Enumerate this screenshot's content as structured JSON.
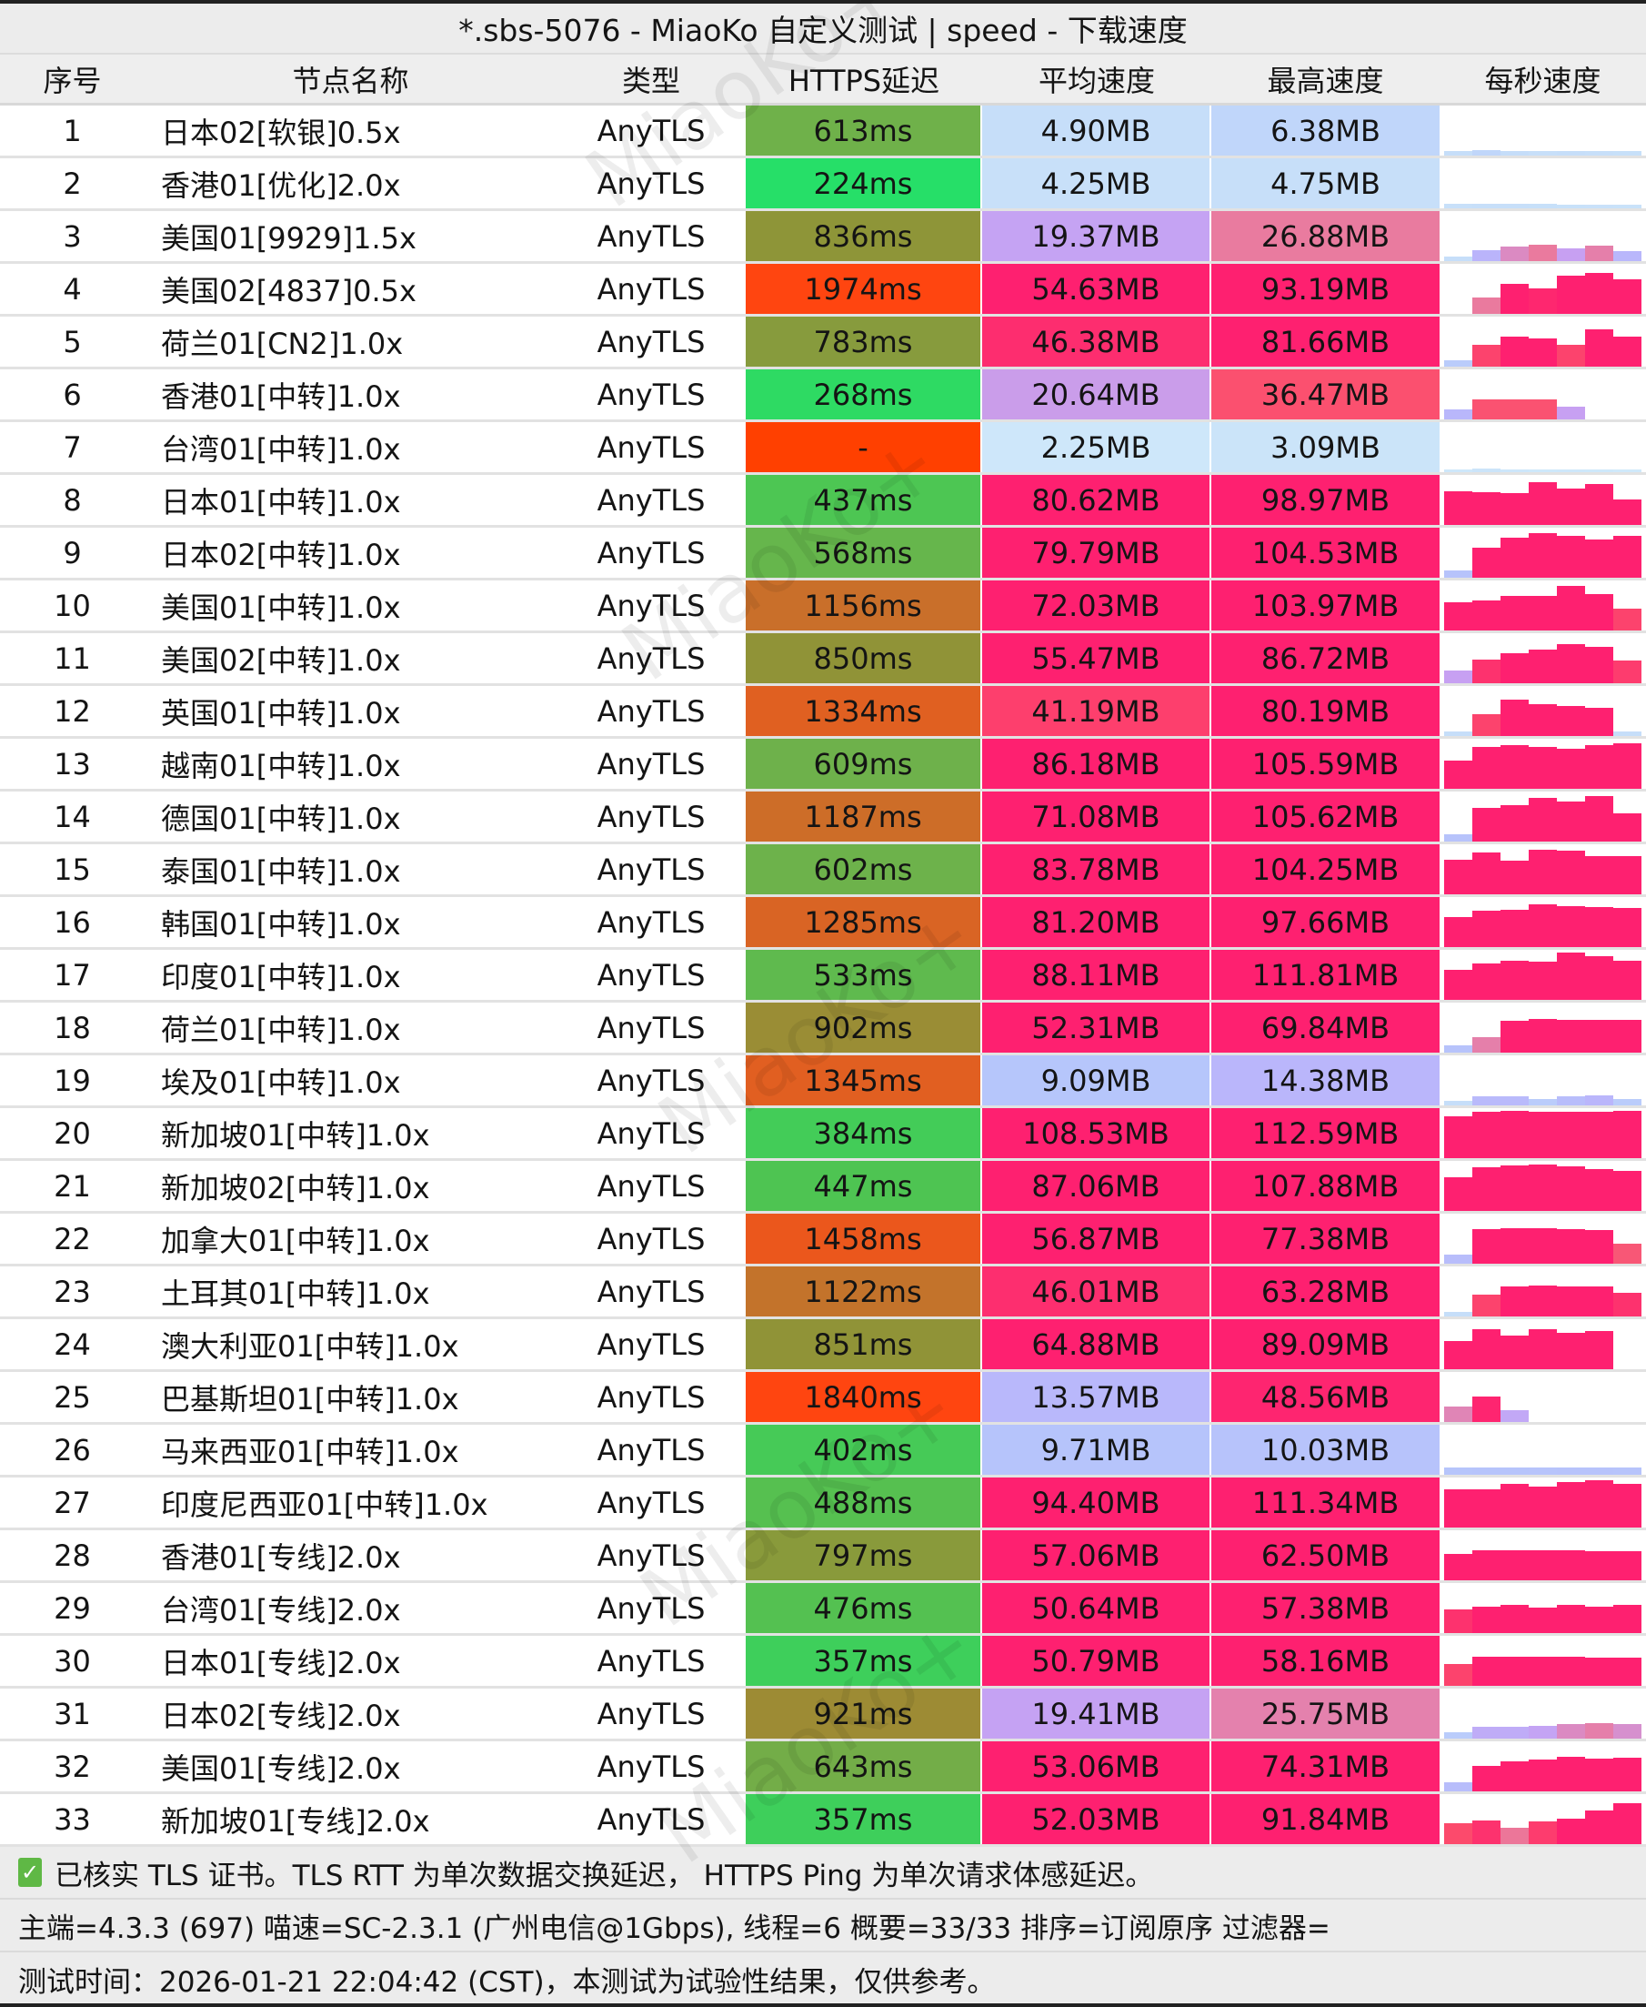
{
  "window": {
    "title": "*.sbs-5076 - MiaoKo 自定义测试 | speed - 下载速度"
  },
  "watermark": "MiaoKo+",
  "columns": [
    "序号",
    "节点名称",
    "类型",
    "HTTPS延迟",
    "平均速度",
    "最高速度",
    "每秒速度"
  ],
  "latency_color_stops": [
    [
      200,
      "#22e26a"
    ],
    [
      450,
      "#4fc452"
    ],
    [
      620,
      "#70b04a"
    ],
    [
      850,
      "#909337"
    ],
    [
      1150,
      "#c8702a"
    ],
    [
      1400,
      "#e85a1e"
    ],
    [
      1800,
      "#ff4510"
    ]
  ],
  "latency_fail_color": "#ff4000",
  "speed_color_stops": [
    [
      0,
      "#d4eefa"
    ],
    [
      5,
      "#c6def9"
    ],
    [
      9,
      "#b6c6fb"
    ],
    [
      15,
      "#bab4fb"
    ],
    [
      20,
      "#c7a0f2"
    ],
    [
      27,
      "#ea7a9e"
    ],
    [
      37,
      "#fc4e6c"
    ],
    [
      50,
      "#fe2070"
    ]
  ],
  "rows": [
    {
      "id": "1",
      "name": "日本02[软银]0.5x",
      "type": "AnyTLS",
      "latency": "613ms",
      "avg": "4.90MB",
      "max": "6.38MB",
      "per_sec": [
        4.9,
        6.4,
        5.2,
        4.8,
        4.9,
        4.7,
        4.5
      ]
    },
    {
      "id": "2",
      "name": "香港01[优化]2.0x",
      "type": "AnyTLS",
      "latency": "224ms",
      "avg": "4.25MB",
      "max": "4.75MB",
      "per_sec": [
        4.3,
        4.7,
        4.6,
        4.5,
        4.2,
        4.0,
        3.8
      ]
    },
    {
      "id": "3",
      "name": "美国01[9929]1.5x",
      "type": "AnyTLS",
      "latency": "836ms",
      "avg": "19.37MB",
      "max": "26.88MB",
      "per_sec": [
        5,
        15,
        24,
        27,
        20,
        26,
        14
      ]
    },
    {
      "id": "4",
      "name": "美国02[4837]0.5x",
      "type": "AnyTLS",
      "latency": "1974ms",
      "avg": "54.63MB",
      "max": "93.19MB",
      "per_sec": [
        0,
        27,
        60,
        48,
        85,
        93,
        75
      ]
    },
    {
      "id": "5",
      "name": "荷兰01[CN2]1.0x",
      "type": "AnyTLS",
      "latency": "783ms",
      "avg": "46.38MB",
      "max": "81.66MB",
      "per_sec": [
        8,
        40,
        60,
        55,
        40,
        82,
        62
      ]
    },
    {
      "id": "6",
      "name": "香港01[中转]1.0x",
      "type": "AnyTLS",
      "latency": "268ms",
      "avg": "20.64MB",
      "max": "36.47MB",
      "per_sec": [
        14,
        36,
        36,
        36,
        20,
        0,
        0
      ]
    },
    {
      "id": "7",
      "name": "台湾01[中转]1.0x",
      "type": "AnyTLS",
      "latency": "-",
      "avg": "2.25MB",
      "max": "3.09MB",
      "per_sec": [
        2.2,
        3.1,
        2.5,
        2.0,
        2.3,
        2.0,
        1.5
      ]
    },
    {
      "id": "8",
      "name": "日本01[中转]1.0x",
      "type": "AnyTLS",
      "latency": "437ms",
      "avg": "80.62MB",
      "max": "98.97MB",
      "per_sec": [
        70,
        68,
        66,
        99,
        80,
        92,
        50
      ]
    },
    {
      "id": "9",
      "name": "日本02[中转]1.0x",
      "type": "AnyTLS",
      "latency": "568ms",
      "avg": "79.79MB",
      "max": "104.53MB",
      "per_sec": [
        10,
        60,
        90,
        104,
        95,
        85,
        95
      ]
    },
    {
      "id": "10",
      "name": "美国01[中转]1.0x",
      "type": "AnyTLS",
      "latency": "1156ms",
      "avg": "72.03MB",
      "max": "103.97MB",
      "per_sec": [
        55,
        60,
        75,
        75,
        104,
        80,
        40
      ]
    },
    {
      "id": "11",
      "name": "美国02[中转]1.0x",
      "type": "AnyTLS",
      "latency": "850ms",
      "avg": "55.47MB",
      "max": "86.72MB",
      "per_sec": [
        20,
        45,
        60,
        70,
        87,
        80,
        42
      ]
    },
    {
      "id": "12",
      "name": "英国01[中转]1.0x",
      "type": "AnyTLS",
      "latency": "1334ms",
      "avg": "41.19MB",
      "max": "80.19MB",
      "per_sec": [
        5,
        40,
        80,
        65,
        62,
        55,
        5
      ]
    },
    {
      "id": "13",
      "name": "越南01[中转]1.0x",
      "type": "AnyTLS",
      "latency": "609ms",
      "avg": "86.18MB",
      "max": "105.59MB",
      "per_sec": [
        55,
        95,
        100,
        95,
        90,
        100,
        106
      ]
    },
    {
      "id": "14",
      "name": "德国01[中转]1.0x",
      "type": "AnyTLS",
      "latency": "1187ms",
      "avg": "71.08MB",
      "max": "105.62MB",
      "per_sec": [
        10,
        70,
        80,
        100,
        90,
        106,
        55
      ]
    },
    {
      "id": "15",
      "name": "泰国01[中转]1.0x",
      "type": "AnyTLS",
      "latency": "602ms",
      "avg": "83.78MB",
      "max": "104.25MB",
      "per_sec": [
        75,
        95,
        70,
        104,
        100,
        85,
        85
      ]
    },
    {
      "id": "16",
      "name": "韩国01[中转]1.0x",
      "type": "AnyTLS",
      "latency": "1285ms",
      "avg": "81.20MB",
      "max": "97.66MB",
      "per_sec": [
        60,
        80,
        82,
        98,
        92,
        90,
        88
      ]
    },
    {
      "id": "17",
      "name": "印度01[中转]1.0x",
      "type": "AnyTLS",
      "latency": "533ms",
      "avg": "88.11MB",
      "max": "111.81MB",
      "per_sec": [
        60,
        80,
        88,
        85,
        112,
        100,
        88
      ]
    },
    {
      "id": "18",
      "name": "荷兰01[中转]1.0x",
      "type": "AnyTLS",
      "latency": "902ms",
      "avg": "52.31MB",
      "max": "69.84MB",
      "per_sec": [
        10,
        26,
        67,
        70,
        68,
        69,
        68
      ]
    },
    {
      "id": "19",
      "name": "埃及01[中转]1.0x",
      "type": "AnyTLS",
      "latency": "1345ms",
      "avg": "9.09MB",
      "max": "14.38MB",
      "per_sec": [
        5,
        13,
        13,
        8,
        12,
        14.4,
        8
      ]
    },
    {
      "id": "20",
      "name": "新加坡01[中转]1.0x",
      "type": "AnyTLS",
      "latency": "384ms",
      "avg": "108.53MB",
      "max": "112.59MB",
      "per_sec": [
        95,
        110,
        112,
        110,
        110,
        110,
        112
      ]
    },
    {
      "id": "21",
      "name": "新加坡02[中转]1.0x",
      "type": "AnyTLS",
      "latency": "447ms",
      "avg": "87.06MB",
      "max": "107.88MB",
      "per_sec": [
        70,
        100,
        105,
        108,
        104,
        95,
        90
      ]
    },
    {
      "id": "22",
      "name": "加拿大01[中转]1.0x",
      "type": "AnyTLS",
      "latency": "1458ms",
      "avg": "56.87MB",
      "max": "77.38MB",
      "per_sec": [
        12,
        75,
        77,
        76,
        75,
        70,
        35
      ]
    },
    {
      "id": "23",
      "name": "土耳其01[中转]1.0x",
      "type": "AnyTLS",
      "latency": "1122ms",
      "avg": "46.01MB",
      "max": "63.28MB",
      "per_sec": [
        5,
        40,
        62,
        63,
        62,
        61,
        45
      ]
    },
    {
      "id": "24",
      "name": "澳大利亚01[中转]1.0x",
      "type": "AnyTLS",
      "latency": "851ms",
      "avg": "64.88MB",
      "max": "89.09MB",
      "per_sec": [
        55,
        89,
        72,
        89,
        80,
        85,
        0
      ]
    },
    {
      "id": "25",
      "name": "巴基斯坦01[中转]1.0x",
      "type": "AnyTLS",
      "latency": "1840ms",
      "avg": "13.57MB",
      "max": "48.56MB",
      "per_sec": [
        25,
        48.6,
        18,
        0,
        0,
        0,
        0
      ]
    },
    {
      "id": "26",
      "name": "马来西亚01[中转]1.0x",
      "type": "AnyTLS",
      "latency": "402ms",
      "avg": "9.71MB",
      "max": "10.03MB",
      "per_sec": [
        9.5,
        9.7,
        9.6,
        9.8,
        10,
        10,
        9.8
      ]
    },
    {
      "id": "27",
      "name": "印度尼西亚01[中转]1.0x",
      "type": "AnyTLS",
      "latency": "488ms",
      "avg": "94.40MB",
      "max": "111.34MB",
      "per_sec": [
        85,
        85,
        100,
        92,
        105,
        111,
        100
      ]
    },
    {
      "id": "28",
      "name": "香港01[专线]2.0x",
      "type": "AnyTLS",
      "latency": "797ms",
      "avg": "57.06MB",
      "max": "62.50MB",
      "per_sec": [
        52,
        60,
        62,
        62,
        61,
        58,
        58
      ]
    },
    {
      "id": "29",
      "name": "台湾01[专线]2.0x",
      "type": "AnyTLS",
      "latency": "476ms",
      "avg": "50.64MB",
      "max": "57.38MB",
      "per_sec": [
        45,
        52,
        56,
        50,
        56,
        52,
        57
      ]
    },
    {
      "id": "30",
      "name": "日本01[专线]2.0x",
      "type": "AnyTLS",
      "latency": "357ms",
      "avg": "50.79MB",
      "max": "58.16MB",
      "per_sec": [
        40,
        58,
        58,
        58,
        58,
        55,
        55
      ]
    },
    {
      "id": "31",
      "name": "日本02[专线]2.0x",
      "type": "AnyTLS",
      "latency": "921ms",
      "avg": "19.41MB",
      "max": "25.75MB",
      "per_sec": [
        8,
        17,
        17,
        19,
        24,
        26,
        23
      ]
    },
    {
      "id": "32",
      "name": "美国01[专线]2.0x",
      "type": "AnyTLS",
      "latency": "643ms",
      "avg": "53.06MB",
      "max": "74.31MB",
      "per_sec": [
        12,
        50,
        60,
        65,
        74,
        68,
        70
      ]
    },
    {
      "id": "33",
      "name": "新加坡01[专线]2.0x",
      "type": "AnyTLS",
      "latency": "357ms",
      "avg": "52.03MB",
      "max": "91.84MB",
      "per_sec": [
        38,
        45,
        28,
        42,
        50,
        70,
        91
      ]
    }
  ],
  "footer": {
    "tls_checked": true,
    "tls_note": "已核实 TLS 证书。TLS RTT 为单次数据交换延迟， HTTPS Ping 为单次请求体感延迟。",
    "info": "主端=4.3.3 (697) 喵速=SC-2.3.1 (广州电信@1Gbps), 线程=6 概要=33/33 排序=订阅原序 过滤器=",
    "time": "测试时间：2026-01-21 22:04:42 (CST)，本测试为试验性结果，仅供参考。"
  }
}
